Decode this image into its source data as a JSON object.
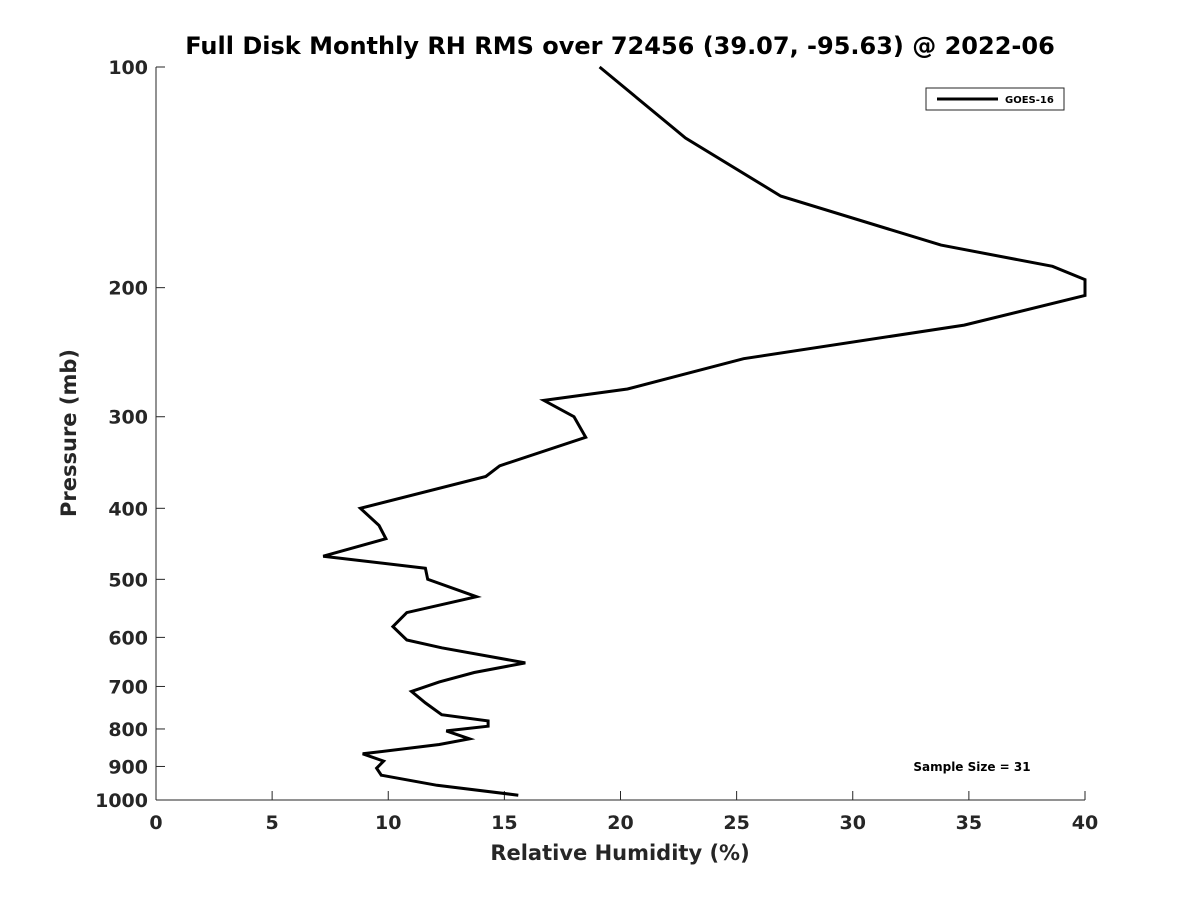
{
  "chart_data": {
    "type": "line",
    "title": "Full Disk Monthly RH RMS over 72456 (39.07, -95.63) @ 2022-06",
    "xlabel": "Relative Humidity (%)",
    "ylabel": "Pressure (mb)",
    "xlim": [
      0,
      40
    ],
    "ylim": [
      100,
      1000
    ],
    "y_scale": "log",
    "y_reversed": true,
    "x_ticks": [
      0,
      5,
      10,
      15,
      20,
      25,
      30,
      35,
      40
    ],
    "y_ticks": [
      100,
      200,
      300,
      400,
      500,
      600,
      700,
      800,
      900,
      1000
    ],
    "legend_position": "top-right",
    "annotation": "Sample Size = 31",
    "series": [
      {
        "name": "GOES-16",
        "color": "#000000",
        "points": [
          [
            19.1,
            100
          ],
          [
            22.8,
            125
          ],
          [
            26.9,
            150
          ],
          [
            33.8,
            175
          ],
          [
            38.6,
            187
          ],
          [
            40.0,
            195
          ],
          [
            40.0,
            205
          ],
          [
            34.8,
            225
          ],
          [
            25.3,
            250
          ],
          [
            20.3,
            275
          ],
          [
            16.7,
            285
          ],
          [
            18.0,
            300
          ],
          [
            18.5,
            320
          ],
          [
            14.8,
            350
          ],
          [
            14.2,
            362
          ],
          [
            8.8,
            400
          ],
          [
            9.6,
            422
          ],
          [
            9.9,
            440
          ],
          [
            7.2,
            465
          ],
          [
            11.6,
            483
          ],
          [
            11.7,
            500
          ],
          [
            13.8,
            528
          ],
          [
            10.8,
            555
          ],
          [
            10.2,
            580
          ],
          [
            10.8,
            605
          ],
          [
            12.3,
            620
          ],
          [
            15.9,
            650
          ],
          [
            13.7,
            670
          ],
          [
            12.2,
            690
          ],
          [
            11.0,
            711
          ],
          [
            11.6,
            737
          ],
          [
            12.3,
            765
          ],
          [
            14.3,
            780
          ],
          [
            14.3,
            793
          ],
          [
            12.5,
            805
          ],
          [
            13.5,
            825
          ],
          [
            12.2,
            840
          ],
          [
            8.9,
            865
          ],
          [
            9.8,
            885
          ],
          [
            9.5,
            905
          ],
          [
            9.7,
            925
          ],
          [
            12.1,
            955
          ],
          [
            15.6,
            985
          ]
        ]
      }
    ]
  }
}
